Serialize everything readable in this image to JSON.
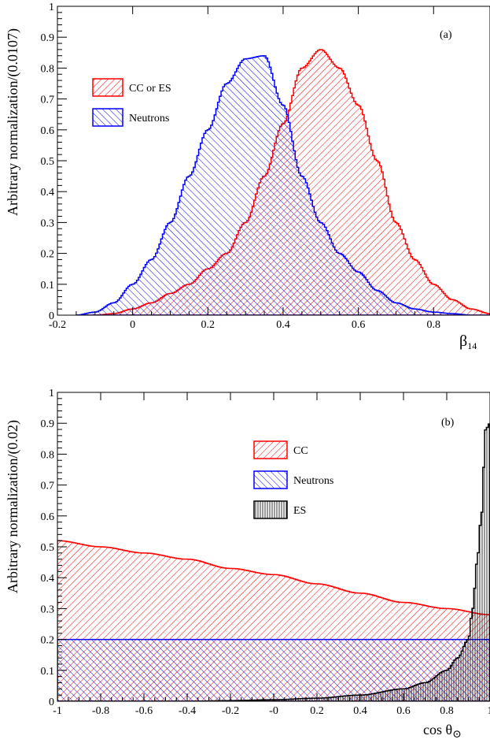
{
  "chart_data": [
    {
      "type": "histogram",
      "panel_label": "(a)",
      "xlabel": "β",
      "xlabel_sub": "14",
      "ylabel": "Arbitrary normalization/(0.0107)",
      "xlim": [
        -0.2,
        0.95
      ],
      "ylim": [
        0,
        1
      ],
      "x_ticks": [
        -0.2,
        0,
        0.2,
        0.4,
        0.6,
        0.8
      ],
      "x_tick_labels": [
        "-0.2",
        "0",
        "0.2",
        "0.4",
        "0.6",
        "0.8"
      ],
      "y_ticks": [
        0,
        0.1,
        0.2,
        0.3,
        0.4,
        0.5,
        0.6,
        0.7,
        0.8,
        0.9,
        1
      ],
      "y_tick_labels": [
        "0",
        "0.1",
        "0.2",
        "0.3",
        "0.4",
        "0.5",
        "0.6",
        "0.7",
        "0.8",
        "0.9",
        "1"
      ],
      "legend_position": "upper-left",
      "series": [
        {
          "name": "CC or ES",
          "color": "#ff0000",
          "hatch": "diagonal-up",
          "x": [
            -0.15,
            -0.1,
            -0.05,
            0,
            0.05,
            0.1,
            0.15,
            0.2,
            0.25,
            0.3,
            0.35,
            0.4,
            0.45,
            0.5,
            0.55,
            0.6,
            0.65,
            0.7,
            0.75,
            0.8,
            0.85,
            0.9,
            0.95
          ],
          "y": [
            0,
            0,
            0.005,
            0.02,
            0.04,
            0.07,
            0.1,
            0.15,
            0.2,
            0.3,
            0.45,
            0.62,
            0.8,
            0.86,
            0.8,
            0.68,
            0.5,
            0.3,
            0.18,
            0.1,
            0.05,
            0.02,
            0.005
          ]
        },
        {
          "name": "Neutrons",
          "color": "#0000ff",
          "hatch": "diagonal-down",
          "x": [
            -0.15,
            -0.1,
            -0.05,
            0,
            0.05,
            0.1,
            0.15,
            0.2,
            0.25,
            0.3,
            0.35,
            0.4,
            0.45,
            0.5,
            0.55,
            0.6,
            0.65,
            0.7,
            0.75,
            0.8,
            0.85,
            0.9,
            0.95
          ],
          "y": [
            0,
            0.01,
            0.04,
            0.1,
            0.18,
            0.3,
            0.45,
            0.6,
            0.75,
            0.83,
            0.84,
            0.68,
            0.45,
            0.3,
            0.2,
            0.14,
            0.08,
            0.04,
            0.02,
            0.01,
            0.005,
            0,
            0
          ]
        }
      ]
    },
    {
      "type": "histogram",
      "panel_label": "(b)",
      "xlabel": "cos θ",
      "xlabel_sub": "⊙",
      "ylabel": "Arbitrary normalization/(0.02)",
      "xlim": [
        -1,
        1
      ],
      "ylim": [
        0,
        1
      ],
      "x_ticks": [
        -1,
        -0.8,
        -0.6,
        -0.4,
        -0.2,
        0,
        0.2,
        0.4,
        0.6,
        0.8,
        1
      ],
      "x_tick_labels": [
        "-1",
        "-0.8",
        "-0.6",
        "-0.4",
        "-0.2",
        "-0",
        "0.2",
        "0.4",
        "0.6",
        "0.8",
        "1"
      ],
      "y_ticks": [
        0,
        0.1,
        0.2,
        0.3,
        0.4,
        0.5,
        0.6,
        0.7,
        0.8,
        0.9,
        1
      ],
      "y_tick_labels": [
        "0",
        "0.1",
        "0.2",
        "0.3",
        "0.4",
        "0.5",
        "0.6",
        "0.7",
        "0.8",
        "0.9",
        "1"
      ],
      "legend_position": "upper-center",
      "series": [
        {
          "name": "CC",
          "color": "#ff0000",
          "hatch": "diagonal-up",
          "x": [
            -1,
            -0.8,
            -0.6,
            -0.4,
            -0.2,
            0,
            0.2,
            0.4,
            0.6,
            0.8,
            1
          ],
          "y": [
            0.52,
            0.5,
            0.48,
            0.46,
            0.43,
            0.41,
            0.38,
            0.35,
            0.32,
            0.3,
            0.28
          ]
        },
        {
          "name": "Neutrons",
          "color": "#0000ff",
          "hatch": "diagonal-down",
          "x": [
            -1,
            -0.8,
            -0.6,
            -0.4,
            -0.2,
            0,
            0.2,
            0.4,
            0.6,
            0.8,
            1
          ],
          "y": [
            0.2,
            0.2,
            0.2,
            0.2,
            0.2,
            0.2,
            0.2,
            0.2,
            0.2,
            0.2,
            0.2
          ]
        },
        {
          "name": "ES",
          "color": "#000000",
          "hatch": "vertical",
          "x": [
            -1,
            -0.8,
            -0.6,
            -0.4,
            -0.2,
            0,
            0.2,
            0.4,
            0.6,
            0.7,
            0.8,
            0.85,
            0.9,
            0.92,
            0.94,
            0.96,
            0.98,
            1
          ],
          "y": [
            0,
            0,
            0,
            0,
            0.002,
            0.005,
            0.01,
            0.02,
            0.04,
            0.06,
            0.1,
            0.14,
            0.2,
            0.3,
            0.45,
            0.6,
            0.88,
            0.9
          ]
        }
      ]
    }
  ]
}
